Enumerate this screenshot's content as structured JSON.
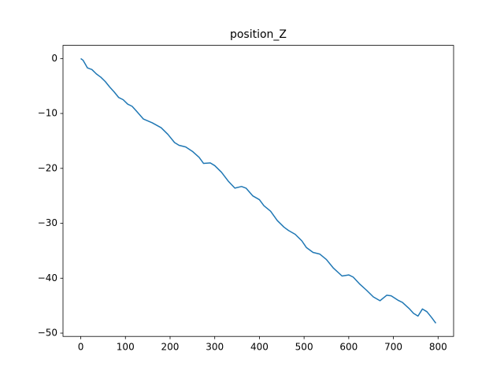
{
  "chart_data": {
    "type": "line",
    "title": "position_Z",
    "x": [
      0,
      5,
      10,
      15,
      25,
      35,
      45,
      55,
      65,
      75,
      85,
      95,
      105,
      115,
      125,
      140,
      160,
      180,
      195,
      210,
      220,
      235,
      250,
      265,
      275,
      290,
      300,
      315,
      330,
      345,
      360,
      370,
      385,
      400,
      410,
      425,
      440,
      455,
      465,
      480,
      495,
      505,
      520,
      535,
      550,
      565,
      585,
      600,
      610,
      625,
      640,
      655,
      670,
      685,
      695,
      710,
      720,
      735,
      745,
      755,
      765,
      775,
      785,
      795
    ],
    "series": [
      {
        "color": "#1f77b4",
        "values": [
          0,
          -0.3,
          -1,
          -1.7,
          -2,
          -2.8,
          -3.4,
          -4.2,
          -5.2,
          -6.1,
          -7.1,
          -7.5,
          -8.3,
          -8.7,
          -9.6,
          -11,
          -11.7,
          -12.6,
          -13.8,
          -15.3,
          -15.8,
          -16.1,
          -16.9,
          -18,
          -19.1,
          -19,
          -19.5,
          -20.7,
          -22.3,
          -23.6,
          -23.3,
          -23.6,
          -25,
          -25.7,
          -26.8,
          -27.8,
          -29.5,
          -30.7,
          -31.3,
          -32,
          -33.2,
          -34.4,
          -35.3,
          -35.6,
          -36.6,
          -38.1,
          -39.6,
          -39.4,
          -39.8,
          -41.1,
          -42.2,
          -43.4,
          -44.1,
          -43.1,
          -43.2,
          -44,
          -44.4,
          -45.5,
          -46.4,
          -46.9,
          -45.6,
          -46.1,
          -47.1,
          -48.2
        ]
      }
    ],
    "xlim": [
      -39.75,
      834.75
    ],
    "ylim": [
      -50.6,
      2.4
    ],
    "xticks": [
      0,
      100,
      200,
      300,
      400,
      500,
      600,
      700,
      800
    ],
    "yticks": [
      0,
      {
        "value": -10,
        "label": "−10"
      },
      {
        "value": -20,
        "label": "−20"
      },
      {
        "value": -30,
        "label": "−30"
      },
      {
        "value": -40,
        "label": "−40"
      },
      {
        "value": -50,
        "label": "−50"
      }
    ]
  }
}
